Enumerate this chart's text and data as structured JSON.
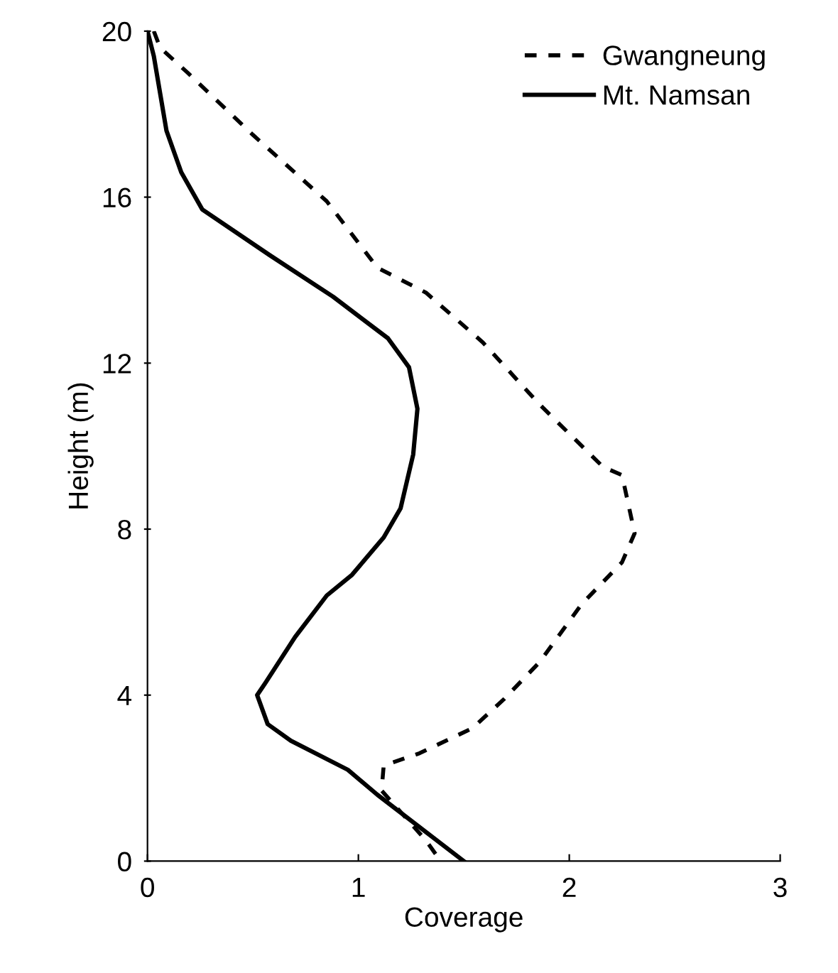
{
  "chart_data": {
    "type": "line",
    "xlabel": "Coverage",
    "ylabel": "Height (m)",
    "xlim": [
      0,
      3
    ],
    "xticks": [
      0,
      1,
      2,
      3
    ],
    "ylim": [
      0,
      20
    ],
    "yticks": [
      0,
      4,
      8,
      12,
      16,
      20
    ],
    "grid": false,
    "legend": "top right",
    "marker": "none",
    "series": [
      {
        "name": "Gwangneung",
        "color": "#000000",
        "line_style": "dashed",
        "x": [
          0.03,
          0.06,
          0.19,
          0.5,
          0.85,
          1.09,
          1.32,
          1.59,
          1.86,
          2.16,
          2.25,
          2.28,
          2.31,
          2.25,
          2.06,
          1.86,
          1.69,
          1.54,
          1.29,
          1.12,
          1.11,
          1.32,
          1.39
        ],
        "values": [
          20,
          19.6,
          19.0,
          17.5,
          15.9,
          14.3,
          13.7,
          12.5,
          11.0,
          9.5,
          9.3,
          8.6,
          7.9,
          7.2,
          6.2,
          4.8,
          3.9,
          3.2,
          2.6,
          2.3,
          1.7,
          0.5,
          0
        ]
      },
      {
        "name": "Mt. Namsan",
        "color": "#000000",
        "line_style": "solid",
        "x": [
          0,
          0.03,
          0.09,
          0.16,
          0.26,
          0.58,
          0.88,
          1.14,
          1.24,
          1.28,
          1.26,
          1.2,
          1.12,
          0.97,
          0.85,
          0.7,
          0.56,
          0.52,
          0.57,
          0.68,
          0.95,
          1.09,
          1.5
        ],
        "values": [
          20,
          19.4,
          17.6,
          16.6,
          15.7,
          14.6,
          13.6,
          12.6,
          11.9,
          10.9,
          9.8,
          8.5,
          7.8,
          6.9,
          6.4,
          5.4,
          4.3,
          4.0,
          3.3,
          2.9,
          2.2,
          1.6,
          0
        ]
      }
    ]
  }
}
